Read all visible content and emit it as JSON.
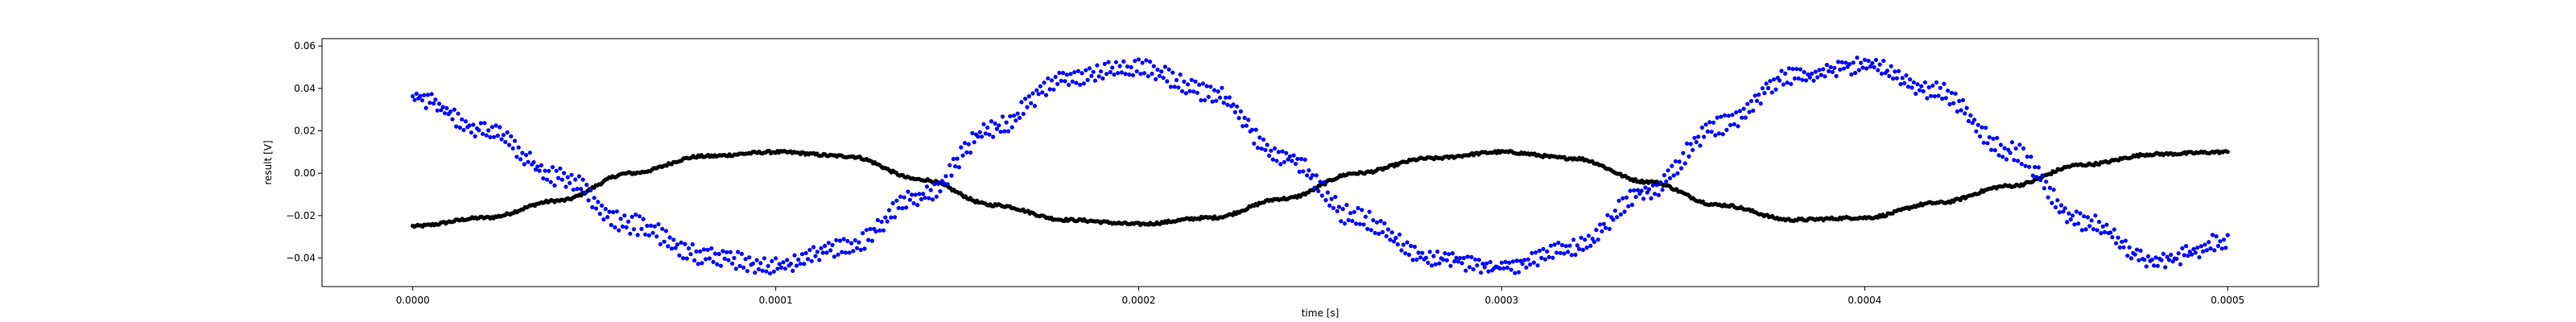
{
  "chart_data": {
    "type": "scatter",
    "title": "",
    "xlabel": "time [s]",
    "ylabel": "result [V]",
    "xlim": [
      -2.5e-05,
      0.000525
    ],
    "ylim": [
      -0.0535,
      0.0635
    ],
    "xticks": [
      "0.0000",
      "0.0001",
      "0.0002",
      "0.0003",
      "0.0004",
      "0.0005"
    ],
    "xtick_values": [
      0.0,
      0.0001,
      0.0002,
      0.0003,
      0.0004,
      0.0005
    ],
    "yticks": [
      "−0.04",
      "−0.02",
      "0.00",
      "0.02",
      "0.04",
      "0.06"
    ],
    "ytick_values": [
      -0.04,
      -0.02,
      0.0,
      0.02,
      0.04,
      0.06
    ],
    "grid": false,
    "legend": "none",
    "series": [
      {
        "color": "#0000ff",
        "marker": "dot",
        "t": [
          0.0,
          2e-05,
          4e-05,
          6e-05,
          8e-05,
          0.0001,
          0.00012,
          0.00014,
          0.00016,
          0.00018,
          0.0002,
          0.00022,
          0.00024,
          0.00026,
          0.00028,
          0.0003,
          0.00032,
          0.00034,
          0.00036,
          0.00038,
          0.0004,
          0.00042,
          0.00044,
          0.00046,
          0.00048,
          0.0005
        ],
        "v_upper": [
          0.038,
          0.022,
          0.001,
          -0.021,
          -0.036,
          -0.042,
          -0.032,
          -0.008,
          0.024,
          0.048,
          0.052,
          0.04,
          0.01,
          -0.018,
          -0.038,
          -0.043,
          -0.033,
          -0.006,
          0.025,
          0.048,
          0.053,
          0.041,
          0.013,
          -0.02,
          -0.04,
          -0.03
        ],
        "v_lower": [
          0.034,
          0.018,
          -0.004,
          -0.027,
          -0.041,
          -0.046,
          -0.037,
          -0.013,
          0.019,
          0.043,
          0.048,
          0.035,
          0.005,
          -0.024,
          -0.042,
          -0.046,
          -0.037,
          -0.011,
          0.02,
          0.044,
          0.049,
          0.036,
          0.008,
          -0.025,
          -0.043,
          -0.036
        ]
      },
      {
        "color": "#000000",
        "marker": "dot",
        "t": [
          0.0,
          2e-05,
          4e-05,
          6e-05,
          8e-05,
          0.0001,
          0.00012,
          0.00014,
          0.00016,
          0.00018,
          0.0002,
          0.00022,
          0.00024,
          0.00026,
          0.00028,
          0.0003,
          0.00032,
          0.00034,
          0.00036,
          0.00038,
          0.0004,
          0.00042,
          0.00044,
          0.00046,
          0.00048,
          0.0005
        ],
        "v": [
          -0.025,
          -0.021,
          -0.013,
          0.0,
          0.008,
          0.01,
          0.008,
          -0.003,
          -0.015,
          -0.022,
          -0.024,
          -0.021,
          -0.012,
          0.0,
          0.007,
          0.01,
          0.007,
          -0.004,
          -0.015,
          -0.022,
          -0.021,
          -0.014,
          -0.006,
          0.004,
          0.009,
          0.01
        ]
      }
    ]
  }
}
